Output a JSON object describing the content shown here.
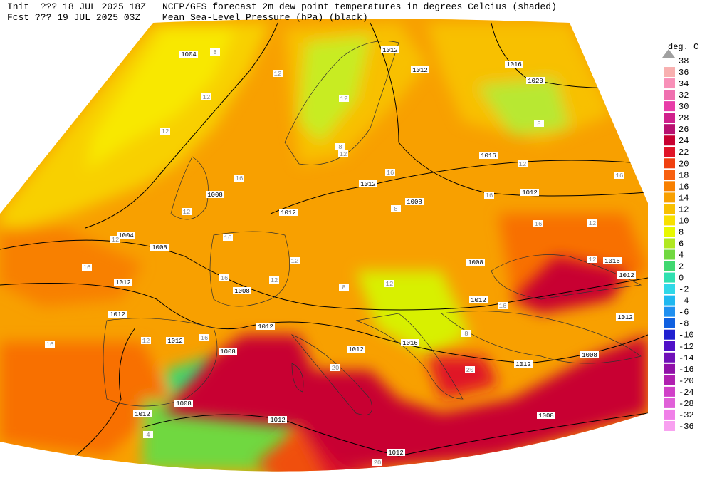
{
  "header": {
    "init": "Init  ??? 18 JUL 2025 18Z",
    "fcst": "Fcst ??? 19 JUL 2025 03Z",
    "title": "NCEP/GFS forecast 2m dew point temperatures in degrees Celcius (shaded)",
    "subtitle": "Mean Sea-Level Pressure (hPa) (black)"
  },
  "legend": {
    "title": "deg. C",
    "entries": [
      {
        "value": 38,
        "color": "#a0a0a0"
      },
      {
        "value": 36,
        "color": "#f8b0b0"
      },
      {
        "value": 34,
        "color": "#f890b8"
      },
      {
        "value": 32,
        "color": "#f070b0"
      },
      {
        "value": 30,
        "color": "#e83ca8"
      },
      {
        "value": 28,
        "color": "#d0208c"
      },
      {
        "value": 26,
        "color": "#b81070"
      },
      {
        "value": 24,
        "color": "#c80030"
      },
      {
        "value": 22,
        "color": "#e01428"
      },
      {
        "value": 20,
        "color": "#f04010"
      },
      {
        "value": 18,
        "color": "#f86010"
      },
      {
        "value": 16,
        "color": "#f88000"
      },
      {
        "value": 14,
        "color": "#f8a000"
      },
      {
        "value": 12,
        "color": "#f8c000"
      },
      {
        "value": 10,
        "color": "#f8e000"
      },
      {
        "value": 8,
        "color": "#e8f800"
      },
      {
        "value": 6,
        "color": "#b0e820"
      },
      {
        "value": 4,
        "color": "#70d840"
      },
      {
        "value": 2,
        "color": "#40d870"
      },
      {
        "value": 0,
        "color": "#30e0b0"
      },
      {
        "value": -2,
        "color": "#30d8e8"
      },
      {
        "value": -4,
        "color": "#20b8f0"
      },
      {
        "value": -6,
        "color": "#2090f0"
      },
      {
        "value": -8,
        "color": "#1060e0"
      },
      {
        "value": -10,
        "color": "#2020d0"
      },
      {
        "value": -12,
        "color": "#5010c8"
      },
      {
        "value": -14,
        "color": "#7010b8"
      },
      {
        "value": -16,
        "color": "#9010a8"
      },
      {
        "value": -20,
        "color": "#b020b0"
      },
      {
        "value": -24,
        "color": "#d040c8"
      },
      {
        "value": -28,
        "color": "#e060d8"
      },
      {
        "value": -32,
        "color": "#f080e8"
      },
      {
        "value": -36,
        "color": "#f8a0f0"
      }
    ]
  },
  "isobar_labels": [
    1004,
    1012,
    1012,
    1016,
    1020,
    1016,
    1012,
    1012,
    1008,
    1008,
    1012,
    1004,
    1008,
    1012,
    1008,
    1012,
    1008,
    1016,
    1012,
    1012,
    1012,
    1012,
    1012,
    1008,
    1012,
    1016,
    1012,
    1008,
    1008,
    1012,
    1012,
    1008,
    1012
  ],
  "dewpoint_labels": [
    8,
    12,
    12,
    12,
    12,
    8,
    12,
    16,
    16,
    12,
    16,
    12,
    16,
    16,
    12,
    12,
    8,
    12,
    16,
    16,
    12,
    12,
    16,
    8,
    12,
    16,
    16,
    12,
    16,
    20,
    20,
    20,
    4,
    8,
    8
  ]
}
